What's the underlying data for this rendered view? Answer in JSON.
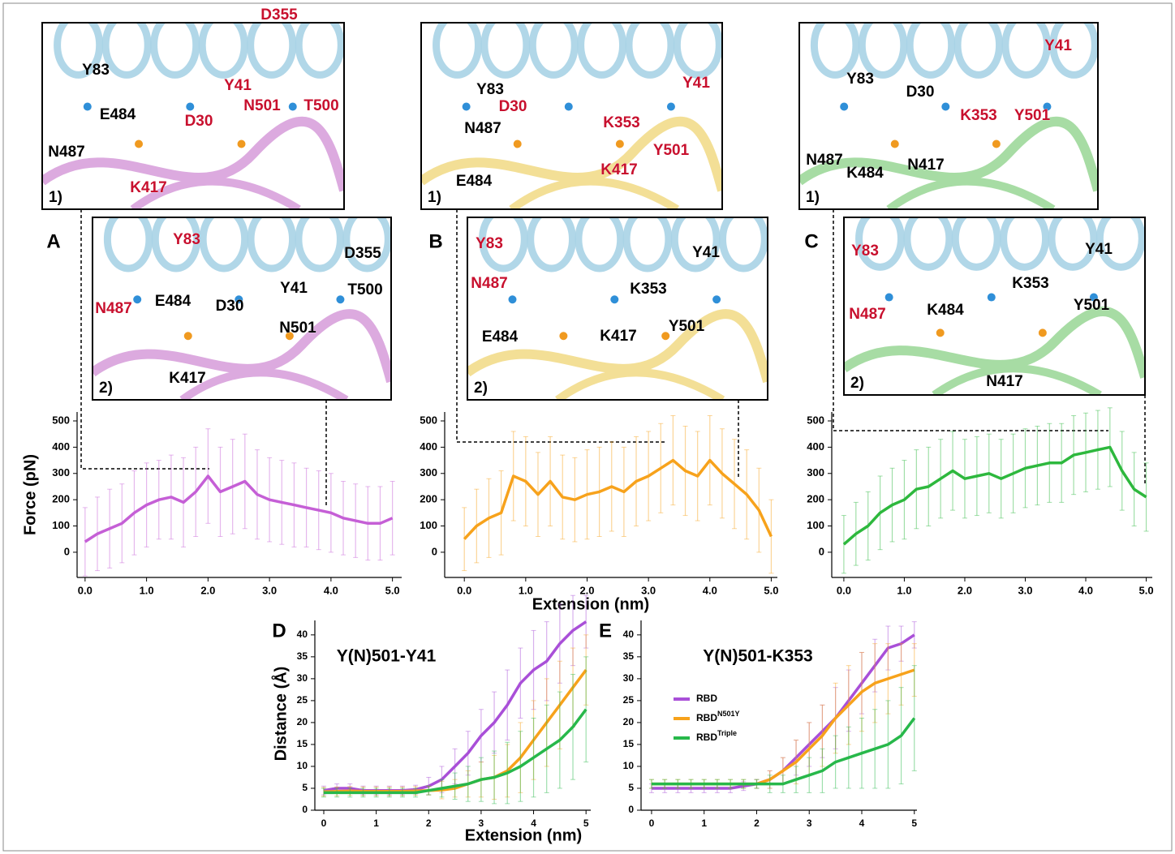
{
  "chart_data": [
    {
      "type": "line",
      "panel_label": "A",
      "ylabel": "Force (pN)",
      "x": [
        0,
        0.2,
        0.4,
        0.6,
        0.8,
        1.0,
        1.2,
        1.4,
        1.6,
        1.8,
        2.0,
        2.2,
        2.4,
        2.6,
        2.8,
        3.0,
        3.2,
        3.4,
        3.6,
        3.8,
        4.0,
        4.2,
        4.4,
        4.6,
        4.8,
        5.0
      ],
      "series": [
        {
          "color": "#c55fd6",
          "values": [
            40,
            70,
            90,
            110,
            150,
            180,
            200,
            210,
            190,
            230,
            290,
            230,
            250,
            270,
            220,
            200,
            190,
            180,
            170,
            160,
            150,
            130,
            120,
            110,
            110,
            130
          ],
          "errors": [
            130,
            140,
            150,
            150,
            160,
            160,
            150,
            160,
            170,
            170,
            180,
            170,
            180,
            180,
            170,
            160,
            160,
            160,
            150,
            150,
            150,
            140,
            140,
            140,
            140,
            140
          ]
        }
      ],
      "xlim": [
        -0.13,
        5.15
      ],
      "ylim": [
        -96,
        534
      ],
      "xticks": [
        {
          "value": 0,
          "label": "0.0"
        },
        {
          "value": 1,
          "label": "1.0"
        },
        {
          "value": 2,
          "label": "2.0"
        },
        {
          "value": 3,
          "label": "3.0"
        },
        {
          "value": 4,
          "label": "4.0"
        },
        {
          "value": 5,
          "label": "5.0"
        }
      ],
      "yticks": [
        0,
        100,
        200,
        300,
        400,
        500
      ]
    },
    {
      "type": "line",
      "panel_label": "B",
      "xlabel": "Extension (nm)",
      "x": [
        0,
        0.2,
        0.4,
        0.6,
        0.8,
        1.0,
        1.2,
        1.4,
        1.6,
        1.8,
        2.0,
        2.2,
        2.4,
        2.6,
        2.8,
        3.0,
        3.2,
        3.4,
        3.6,
        3.8,
        4.0,
        4.2,
        4.4,
        4.6,
        4.8,
        5.0
      ],
      "series": [
        {
          "color": "#f7a21b",
          "values": [
            50,
            100,
            130,
            150,
            290,
            270,
            220,
            270,
            210,
            200,
            220,
            230,
            250,
            230,
            270,
            290,
            320,
            350,
            310,
            290,
            350,
            300,
            260,
            220,
            160,
            60
          ],
          "errors": [
            120,
            140,
            150,
            160,
            170,
            170,
            160,
            170,
            160,
            160,
            170,
            170,
            170,
            170,
            170,
            170,
            170,
            170,
            170,
            170,
            170,
            170,
            170,
            170,
            160,
            140
          ]
        }
      ],
      "xlim": [
        -0.32,
        5.1
      ],
      "ylim": [
        -96,
        534
      ],
      "xticks": [
        {
          "value": 0,
          "label": "0.0"
        },
        {
          "value": 1,
          "label": "1.0"
        },
        {
          "value": 2,
          "label": "2.0"
        },
        {
          "value": 3,
          "label": "3.0"
        },
        {
          "value": 4,
          "label": "4.0"
        },
        {
          "value": 5,
          "label": "5.0"
        }
      ],
      "yticks": [
        0,
        100,
        200,
        300,
        400,
        500
      ]
    },
    {
      "type": "line",
      "panel_label": "C",
      "x": [
        0,
        0.2,
        0.4,
        0.6,
        0.8,
        1.0,
        1.2,
        1.4,
        1.6,
        1.8,
        2.0,
        2.2,
        2.4,
        2.6,
        2.8,
        3.0,
        3.2,
        3.4,
        3.6,
        3.8,
        4.0,
        4.2,
        4.4,
        4.6,
        4.8,
        5.0
      ],
      "series": [
        {
          "color": "#2db83d",
          "values": [
            30,
            70,
            100,
            150,
            180,
            200,
            240,
            250,
            280,
            310,
            280,
            290,
            300,
            280,
            300,
            320,
            330,
            340,
            340,
            370,
            380,
            390,
            400,
            310,
            240,
            210
          ],
          "errors": [
            110,
            120,
            130,
            140,
            140,
            150,
            150,
            150,
            150,
            150,
            150,
            150,
            150,
            150,
            150,
            150,
            150,
            150,
            150,
            150,
            150,
            150,
            150,
            150,
            140,
            130
          ]
        }
      ],
      "xlim": [
        -0.2,
        5.1
      ],
      "ylim": [
        -96,
        534
      ],
      "xticks": [
        {
          "value": 0,
          "label": "0.0"
        },
        {
          "value": 1,
          "label": "1.0"
        },
        {
          "value": 2,
          "label": "2.0"
        },
        {
          "value": 3,
          "label": "3.0"
        },
        {
          "value": 4,
          "label": "4.0"
        },
        {
          "value": 5,
          "label": "5.0"
        }
      ],
      "yticks": [
        0,
        100,
        200,
        300,
        400,
        500
      ]
    },
    {
      "type": "line",
      "panel_label": "D",
      "title": "Y(N)501-Y41",
      "ylabel": "Distance (Å)",
      "xlabel": "Extension (nm)",
      "x": [
        0,
        0.25,
        0.5,
        0.75,
        1,
        1.25,
        1.5,
        1.75,
        2,
        2.25,
        2.5,
        2.75,
        3,
        3.25,
        3.5,
        3.75,
        4,
        4.25,
        4.5,
        4.75,
        5
      ],
      "series": [
        {
          "color": "#a94fd8",
          "values": [
            4.5,
            5,
            5,
            4.5,
            4.5,
            4.5,
            4.5,
            4.7,
            5.5,
            7,
            10,
            13,
            17,
            20,
            24,
            29,
            32,
            34,
            38,
            41,
            43
          ],
          "errors": [
            1,
            1,
            1,
            1,
            1,
            1,
            1,
            1,
            2,
            3,
            4,
            5,
            6,
            7,
            8,
            8,
            9,
            9,
            9,
            8,
            6
          ]
        },
        {
          "color": "#f7a21b",
          "values": [
            4.2,
            4.3,
            4.4,
            4.3,
            4.3,
            4.3,
            4.3,
            4.4,
            4.5,
            4.6,
            5,
            6,
            7,
            7.5,
            9,
            12,
            16,
            20,
            24,
            28,
            32
          ],
          "errors": [
            1,
            1,
            1,
            1,
            1,
            1,
            1,
            1,
            1,
            2,
            2,
            3,
            4,
            5,
            6,
            8,
            9,
            10,
            10,
            9,
            8
          ]
        },
        {
          "color": "#27b84a",
          "values": [
            4,
            4,
            4,
            4,
            4,
            4,
            4,
            4,
            4.5,
            5,
            5.5,
            6,
            7,
            7.5,
            8.5,
            10,
            12,
            14,
            16,
            19,
            23
          ],
          "errors": [
            1,
            1,
            1,
            1,
            1,
            1,
            1,
            1,
            1,
            2,
            3,
            4,
            5,
            6,
            7,
            8,
            9,
            10,
            11,
            12,
            12
          ]
        }
      ],
      "xlim": [
        -0.17,
        5.09
      ],
      "ylim": [
        0,
        43.3
      ],
      "xticks": [
        0,
        1,
        2,
        3,
        4,
        5
      ],
      "yticks": [
        0,
        5,
        10,
        15,
        20,
        25,
        30,
        35,
        40
      ]
    },
    {
      "type": "line",
      "panel_label": "E",
      "title": "Y(N)501-K353",
      "legend": true,
      "x": [
        0,
        0.25,
        0.5,
        0.75,
        1,
        1.25,
        1.5,
        1.75,
        2,
        2.25,
        2.5,
        2.75,
        3,
        3.25,
        3.5,
        3.75,
        4,
        4.25,
        4.5,
        4.75,
        5
      ],
      "series": [
        {
          "name": "RBD",
          "color": "#a94fd8",
          "values": [
            5,
            5,
            5,
            5,
            5,
            5,
            5,
            5.5,
            6,
            7,
            9,
            12,
            15,
            18,
            21,
            25,
            29,
            33,
            37,
            38,
            40
          ],
          "errors": [
            1,
            1,
            1,
            1,
            1,
            1,
            1,
            1,
            1,
            2,
            3,
            4,
            5,
            6,
            7,
            7,
            7,
            6,
            5,
            4,
            3
          ]
        },
        {
          "name": "RBD",
          "name_sup": "N501Y",
          "color": "#f7a21b",
          "values": [
            6,
            6,
            6,
            6,
            6,
            6,
            6,
            6,
            6,
            7,
            9,
            11,
            14,
            17,
            21,
            24,
            27,
            29,
            30,
            31,
            32
          ],
          "errors": [
            1,
            1,
            1,
            1,
            1,
            1,
            1,
            1,
            1,
            2,
            3,
            5,
            6,
            7,
            8,
            9,
            9,
            9,
            8,
            7,
            6
          ]
        },
        {
          "name": "RBD",
          "name_sup": "Triple",
          "color": "#27b84a",
          "values": [
            6,
            6,
            6,
            6,
            6,
            6,
            6,
            6,
            6,
            6,
            6,
            7,
            8,
            9,
            11,
            12,
            13,
            14,
            15,
            17,
            21
          ],
          "errors": [
            1,
            1,
            1,
            1,
            1,
            1,
            1,
            1,
            1,
            2,
            2,
            3,
            4,
            5,
            6,
            7,
            8,
            9,
            10,
            11,
            12
          ]
        }
      ],
      "xlim": [
        -0.2,
        5.05
      ],
      "ylim": [
        0,
        43.3
      ],
      "xticks": [
        0,
        1,
        2,
        3,
        4,
        5
      ],
      "yticks": [
        0,
        5,
        10,
        15,
        20,
        25,
        30,
        35,
        40
      ]
    }
  ],
  "structures": [
    {
      "tag": "1)",
      "ribbon": "#dcaadf",
      "labels": [
        {
          "text": "Y83",
          "color": "#000"
        },
        {
          "text": "D355",
          "color": "#c8102e"
        },
        {
          "text": "Y41",
          "color": "#c8102e"
        },
        {
          "text": "N501",
          "color": "#c8102e"
        },
        {
          "text": "T500",
          "color": "#c8102e"
        },
        {
          "text": "E484",
          "color": "#000"
        },
        {
          "text": "D30",
          "color": "#c8102e"
        },
        {
          "text": "N487",
          "color": "#000"
        },
        {
          "text": "K417",
          "color": "#c8102e"
        }
      ]
    },
    {
      "tag": "2)",
      "ribbon": "#dcaadf",
      "labels": [
        {
          "text": "Y83",
          "color": "#c8102e"
        },
        {
          "text": "D355",
          "color": "#000"
        },
        {
          "text": "Y41",
          "color": "#000"
        },
        {
          "text": "T500",
          "color": "#000"
        },
        {
          "text": "E484",
          "color": "#000"
        },
        {
          "text": "D30",
          "color": "#000"
        },
        {
          "text": "N487",
          "color": "#c8102e"
        },
        {
          "text": "N501",
          "color": "#000"
        },
        {
          "text": "K417",
          "color": "#000"
        }
      ]
    },
    {
      "tag": "1)",
      "ribbon": "#f3df96",
      "labels": [
        {
          "text": "Y41",
          "color": "#c8102e"
        },
        {
          "text": "Y83",
          "color": "#000"
        },
        {
          "text": "D30",
          "color": "#c8102e"
        },
        {
          "text": "N487",
          "color": "#000"
        },
        {
          "text": "K353",
          "color": "#c8102e"
        },
        {
          "text": "Y501",
          "color": "#c8102e"
        },
        {
          "text": "K417",
          "color": "#c8102e"
        },
        {
          "text": "E484",
          "color": "#000"
        }
      ]
    },
    {
      "tag": "2)",
      "ribbon": "#f3df96",
      "labels": [
        {
          "text": "Y83",
          "color": "#c8102e"
        },
        {
          "text": "Y41",
          "color": "#000"
        },
        {
          "text": "N487",
          "color": "#c8102e"
        },
        {
          "text": "K353",
          "color": "#000"
        },
        {
          "text": "Y501",
          "color": "#000"
        },
        {
          "text": "E484",
          "color": "#000"
        },
        {
          "text": "K417",
          "color": "#000"
        }
      ]
    },
    {
      "tag": "1)",
      "ribbon": "#a7dca4",
      "labels": [
        {
          "text": "Y41",
          "color": "#c8102e"
        },
        {
          "text": "Y83",
          "color": "#000"
        },
        {
          "text": "D30",
          "color": "#000"
        },
        {
          "text": "K353",
          "color": "#c8102e"
        },
        {
          "text": "Y501",
          "color": "#c8102e"
        },
        {
          "text": "N487",
          "color": "#000"
        },
        {
          "text": "N417",
          "color": "#000"
        },
        {
          "text": "K484",
          "color": "#000"
        }
      ]
    },
    {
      "tag": "2)",
      "ribbon": "#a7dca4",
      "labels": [
        {
          "text": "Y83",
          "color": "#c8102e"
        },
        {
          "text": "Y41",
          "color": "#000"
        },
        {
          "text": "K353",
          "color": "#000"
        },
        {
          "text": "Y501",
          "color": "#000"
        },
        {
          "text": "N487",
          "color": "#c8102e"
        },
        {
          "text": "K484",
          "color": "#000"
        },
        {
          "text": "N417",
          "color": "#000"
        }
      ]
    }
  ]
}
